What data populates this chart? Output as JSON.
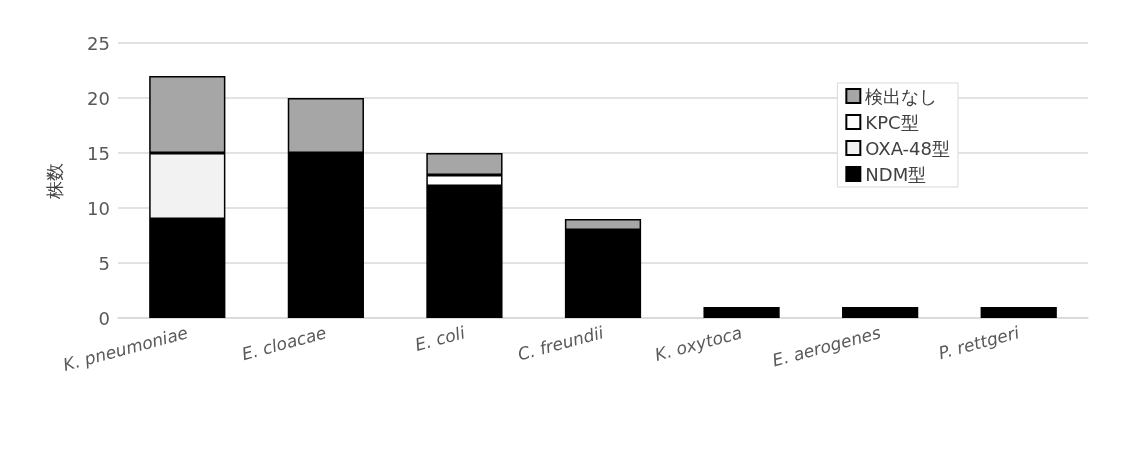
{
  "chart_data": {
    "type": "bar",
    "ylabel": "株数",
    "stacked": true,
    "categories": [
      "K. pneumoniae",
      "E. cloacae",
      "E. coli",
      "C. freundii",
      "K. oxytoca",
      "E. aerogenes",
      "P. rettgeri"
    ],
    "series": [
      {
        "name": "NDM型",
        "color": "#000000",
        "values": [
          9,
          15,
          12,
          8,
          1,
          1,
          1
        ]
      },
      {
        "name": "OXA-48型",
        "color": "#f2f2f2",
        "values": [
          6,
          0,
          0,
          0,
          0,
          0,
          0
        ]
      },
      {
        "name": "KPC型",
        "color": "#ffffff",
        "values": [
          0,
          0,
          1,
          0,
          0,
          0,
          0
        ]
      },
      {
        "name": "検出なし",
        "color": "#a6a6a6",
        "values": [
          7,
          5,
          2,
          1,
          0,
          0,
          0
        ]
      }
    ],
    "ylim": [
      0,
      25
    ],
    "yticks": [
      0,
      5,
      10,
      15,
      20,
      25
    ],
    "grid": "y",
    "legend": "top right"
  }
}
